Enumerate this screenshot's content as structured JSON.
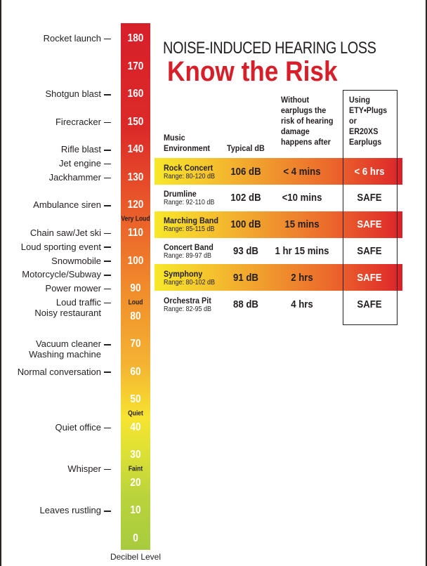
{
  "title": "NOISE-INDUCED HEARING LOSS",
  "subtitle": "Know the Risk",
  "scale": {
    "axis_label": "Decibel Level",
    "ticks": [
      180,
      170,
      160,
      150,
      140,
      130,
      120,
      110,
      100,
      90,
      80,
      70,
      60,
      50,
      40,
      30,
      20,
      10,
      0
    ],
    "zones": [
      {
        "label": "Very Loud",
        "db": 115
      },
      {
        "label": "Loud",
        "db": 85
      },
      {
        "label": "Quiet",
        "db": 45
      },
      {
        "label": "Faint",
        "db": 25
      }
    ],
    "sources": [
      {
        "label": "Rocket launch",
        "db": 180
      },
      {
        "label": "Shotgun blast",
        "db": 160
      },
      {
        "label": "Firecracker",
        "db": 150
      },
      {
        "label": "Rifle blast",
        "db": 140
      },
      {
        "label": "Jet engine",
        "db": 135
      },
      {
        "label": "Jackhammer",
        "db": 130
      },
      {
        "label": "Ambulance siren",
        "db": 120
      },
      {
        "label": "Chain saw/Jet ski",
        "db": 110
      },
      {
        "label": "Loud sporting event",
        "db": 105
      },
      {
        "label": "Snowmobile",
        "db": 100
      },
      {
        "label": "Motorcycle/Subway",
        "db": 95
      },
      {
        "label": "Power mower",
        "db": 90
      },
      {
        "label": "Loud traffic",
        "label2": "Noisy restaurant",
        "db": 85
      },
      {
        "label": "Vacuum cleaner",
        "label2": "Washing machine",
        "db": 70
      },
      {
        "label": "Normal conversation",
        "db": 60
      },
      {
        "label": "Quiet office",
        "db": 40
      },
      {
        "label": "Whisper",
        "db": 25
      },
      {
        "label": "Leaves rustling",
        "db": 10
      }
    ]
  },
  "table": {
    "headers": {
      "env": "Music\nEnvironment",
      "typical": "Typical dB",
      "without": "Without\nearplugs the\nrisk of hearing\ndamage\nhappens after",
      "using": "Using\nETY•Plugs\nor\nER20XS\nEarplugs"
    },
    "rows": [
      {
        "name": "Rock Concert",
        "range": "Range:  80-120 dB",
        "typical": "106 dB",
        "without": "< 4 mins",
        "using": "< 6 hrs",
        "highlight": true
      },
      {
        "name": "Drumline",
        "range": "Range:  92-110 dB",
        "typical": "102 dB",
        "without": "<10 mins",
        "using": "SAFE",
        "highlight": false
      },
      {
        "name": "Marching Band",
        "range": "Range:  85-115 dB",
        "typical": "100 dB",
        "without": "15 mins",
        "using": "SAFE",
        "highlight": true
      },
      {
        "name": "Concert Band",
        "range": "Range:  89-97 dB",
        "typical": "93 dB",
        "without": "1 hr  15 mins",
        "using": "SAFE",
        "highlight": false
      },
      {
        "name": "Symphony",
        "range": "Range:  80-102 dB",
        "typical": "91 dB",
        "without": "2 hrs",
        "using": "SAFE",
        "highlight": true
      },
      {
        "name": "Orchestra Pit",
        "range": "Range:  82-95 dB",
        "typical": "88 dB",
        "without": "4 hrs",
        "using": "SAFE",
        "highlight": false
      }
    ]
  }
}
